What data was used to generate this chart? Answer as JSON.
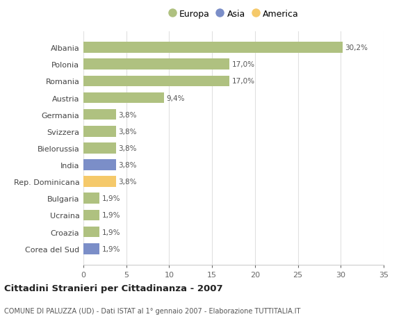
{
  "countries": [
    "Albania",
    "Polonia",
    "Romania",
    "Austria",
    "Germania",
    "Svizzera",
    "Bielorussia",
    "India",
    "Rep. Dominicana",
    "Bulgaria",
    "Ucraina",
    "Croazia",
    "Corea del Sud"
  ],
  "values": [
    30.2,
    17.0,
    17.0,
    9.4,
    3.8,
    3.8,
    3.8,
    3.8,
    3.8,
    1.9,
    1.9,
    1.9,
    1.9
  ],
  "labels": [
    "30,2%",
    "17,0%",
    "17,0%",
    "9,4%",
    "3,8%",
    "3,8%",
    "3,8%",
    "3,8%",
    "3,8%",
    "1,9%",
    "1,9%",
    "1,9%",
    "1,9%"
  ],
  "colors": [
    "#afc180",
    "#afc180",
    "#afc180",
    "#afc180",
    "#afc180",
    "#afc180",
    "#afc180",
    "#7b8ec8",
    "#f5c96a",
    "#afc180",
    "#afc180",
    "#afc180",
    "#7b8ec8"
  ],
  "legend_labels": [
    "Europa",
    "Asia",
    "America"
  ],
  "legend_colors": [
    "#afc180",
    "#7b8ec8",
    "#f5c96a"
  ],
  "title": "Cittadini Stranieri per Cittadinanza - 2007",
  "subtitle": "COMUNE DI PALUZZA (UD) - Dati ISTAT al 1° gennaio 2007 - Elaborazione TUTTITALIA.IT",
  "xlim": [
    0,
    35
  ],
  "xticks": [
    0,
    5,
    10,
    15,
    20,
    25,
    30,
    35
  ],
  "background_color": "#ffffff",
  "grid_color": "#e0e0e0",
  "bar_height": 0.65
}
